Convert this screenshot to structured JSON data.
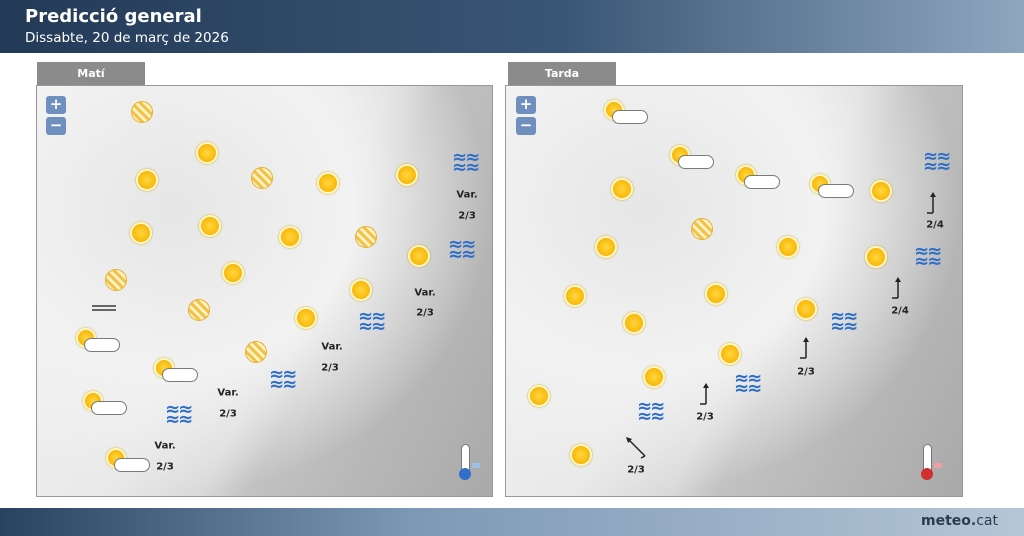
{
  "header": {
    "title": "Predicció general",
    "subtitle": "Dissabte, 20 de març de 2026"
  },
  "footer": {
    "brand_bold": "meteo.",
    "brand_rest": "cat"
  },
  "zoom": {
    "in": "+",
    "out": "−"
  },
  "colors": {
    "sun": "#f6b400",
    "sea": "#2f6fc8",
    "header": "#233a57",
    "zoom_button": "#6f8fbf"
  },
  "morning": {
    "tab": "Matí",
    "icon_legend": [
      "hatched-sun",
      "sun",
      "sun-cloud",
      "fog",
      "sea-waves",
      "thermometer-cold"
    ],
    "labels": [
      {
        "text": "Var."
      },
      {
        "text": "2/3"
      },
      {
        "text": "Var."
      },
      {
        "text": "2/3"
      },
      {
        "text": "Var."
      },
      {
        "text": "2/3"
      },
      {
        "text": "Var."
      },
      {
        "text": "2/3"
      },
      {
        "text": "Var."
      },
      {
        "text": "2/3"
      }
    ]
  },
  "afternoon": {
    "tab": "Tarda",
    "icon_legend": [
      "sun",
      "sun-cloud",
      "hatched-sun",
      "sea-waves",
      "wind-arrow",
      "thermometer-warm"
    ],
    "labels": [
      {
        "text": "2/4"
      },
      {
        "text": "2/4"
      },
      {
        "text": "2/3"
      },
      {
        "text": "2/3"
      },
      {
        "text": "2/3"
      }
    ]
  }
}
